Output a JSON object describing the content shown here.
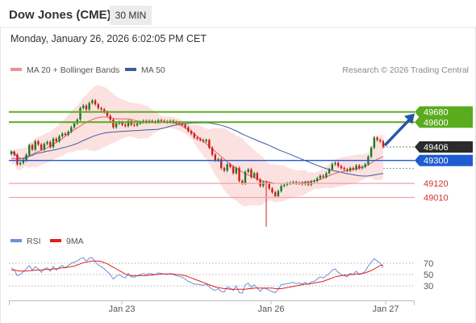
{
  "header": {
    "title": "Dow Jones (CME)",
    "timeframe": "30 MIN",
    "datetime": "Monday, January 26, 2026 6:02:05 PM CET"
  },
  "legend": {
    "ma20": "MA 20 + Bollinger Bands",
    "ma50": "MA 50",
    "copyright": "Research © 2026 Trading Central"
  },
  "rsi_legend": {
    "rsi": "RSI",
    "ma": "9MA"
  },
  "colors": {
    "up": "#1a7a22",
    "down": "#c8201b",
    "ma20": "#e0666a",
    "ma50": "#3d5d9a",
    "band": "#fcdcdc",
    "resistance": "#5aab1e",
    "support": "#f2a3a6",
    "pivot": "#1f5bd1",
    "arrow": "#2457a7",
    "rsi": "#6f8fd8",
    "rsi_ma": "#e02020"
  },
  "chart_data": [
    {
      "type": "candlestick",
      "x_ticks": [
        "Jan 23",
        "Jan 26",
        "Jan 27"
      ],
      "ylim": [
        48760,
        49950
      ],
      "last_price": 49406,
      "levels": [
        {
          "value": 49680,
          "label": "49680",
          "kind": "resistance"
        },
        {
          "value": 49600,
          "label": "49600",
          "kind": "resistance"
        },
        {
          "value": 49300,
          "label": "49300",
          "kind": "pivot"
        },
        {
          "value": 49120,
          "label": "49120",
          "kind": "support"
        },
        {
          "value": 49010,
          "label": "49010",
          "kind": "support"
        }
      ],
      "closes": [
        49370,
        49345,
        49270,
        49280,
        49300,
        49345,
        49420,
        49385,
        49450,
        49425,
        49385,
        49430,
        49445,
        49405,
        49470,
        49450,
        49490,
        49510,
        49500,
        49525,
        49560,
        49590,
        49620,
        49710,
        49730,
        49700,
        49750,
        49770,
        49740,
        49710,
        49700,
        49680,
        49650,
        49620,
        49560,
        49590,
        49600,
        49580,
        49570,
        49610,
        49580,
        49575,
        49590,
        49600,
        49610,
        49600,
        49610,
        49605,
        49600,
        49615,
        49610,
        49605,
        49600,
        49610,
        49600,
        49595,
        49590,
        49580,
        49560,
        49530,
        49510,
        49480,
        49470,
        49460,
        49450,
        49460,
        49400,
        49345,
        49300,
        49310,
        49240,
        49220,
        49270,
        49250,
        49200,
        49240,
        49140,
        49120,
        49210,
        49230,
        49170,
        49200,
        49150,
        49100,
        49130,
        49120,
        49080,
        49050,
        49020,
        49060,
        49100,
        49110,
        49120,
        49125,
        49130,
        49120,
        49125,
        49115,
        49130,
        49110,
        49135,
        49140,
        49160,
        49180,
        49170,
        49200,
        49230,
        49270,
        49280,
        49255,
        49240,
        49230,
        49220,
        49240,
        49230,
        49260,
        49240,
        49250,
        49270,
        49330,
        49400,
        49480,
        49460,
        49450,
        49406
      ],
      "ma20": [
        49315,
        49315,
        49310,
        49310,
        49320,
        49330,
        49340,
        49350,
        49360,
        49370,
        49380,
        49390,
        49400,
        49410,
        49425,
        49440,
        49455,
        49470,
        49490,
        49510,
        49525,
        49540,
        49555,
        49570,
        49585,
        49600,
        49610,
        49620,
        49630,
        49635,
        49640,
        49640,
        49640,
        49635,
        49630,
        49625,
        49625,
        49625,
        49625,
        49625,
        49620,
        49615,
        49610,
        49605,
        49605,
        49600,
        49600,
        49600,
        49600,
        49600,
        49600,
        49600,
        49600,
        49600,
        49595,
        49590,
        49580,
        49570,
        49555,
        49540,
        49525,
        49510,
        49490,
        49470,
        49450,
        49430,
        49410,
        49390,
        49370,
        49350,
        49330,
        49310,
        49290,
        49270,
        49255,
        49240,
        49225,
        49210,
        49195,
        49185,
        49175,
        49165,
        49155,
        49145,
        49140,
        49135,
        49130,
        49125,
        49120,
        49120,
        49120,
        49120,
        49120,
        49120,
        49120,
        49120,
        49120,
        49125,
        49130,
        49130,
        49135,
        49140,
        49145,
        49150,
        49160,
        49170,
        49180,
        49190,
        49200,
        49205,
        49210,
        49215,
        49220,
        49225,
        49230,
        49235,
        49240,
        49245,
        49255,
        49265,
        49280,
        49295,
        49310,
        49320,
        49330
      ]
    },
    {
      "type": "line",
      "name": "RSI",
      "y_ticks": [
        70,
        50,
        30
      ],
      "ylim": [
        10,
        90
      ],
      "rsi": [
        62,
        58,
        48,
        50,
        55,
        60,
        66,
        58,
        64,
        60,
        54,
        60,
        62,
        56,
        64,
        58,
        63,
        66,
        62,
        66,
        70,
        72,
        74,
        78,
        80,
        74,
        79,
        80,
        72,
        67,
        64,
        60,
        55,
        50,
        42,
        47,
        50,
        46,
        44,
        52,
        46,
        45,
        48,
        50,
        52,
        50,
        52,
        51,
        50,
        53,
        52,
        51,
        50,
        52,
        50,
        48,
        47,
        45,
        42,
        38,
        36,
        33,
        33,
        32,
        31,
        33,
        28,
        24,
        22,
        25,
        20,
        19,
        28,
        26,
        22,
        30,
        18,
        17,
        32,
        35,
        27,
        32,
        26,
        20,
        26,
        25,
        22,
        20,
        18,
        24,
        32,
        33,
        34,
        35,
        36,
        34,
        35,
        33,
        36,
        33,
        37,
        38,
        42,
        46,
        44,
        48,
        52,
        58,
        60,
        54,
        50,
        48,
        46,
        52,
        50,
        56,
        50,
        52,
        56,
        65,
        72,
        78,
        74,
        70,
        62
      ],
      "rsi_ma": [
        58,
        58,
        57,
        56,
        56,
        56,
        57,
        57,
        58,
        58,
        58,
        59,
        59,
        59,
        60,
        60,
        61,
        62,
        62,
        63,
        64,
        65,
        67,
        69,
        71,
        72,
        73,
        74,
        74,
        74,
        73,
        71,
        69,
        66,
        63,
        60,
        57,
        54,
        51,
        49,
        48,
        48,
        48,
        48,
        48,
        48,
        49,
        49,
        50,
        50,
        51,
        51,
        51,
        51,
        51,
        50,
        50,
        49,
        48,
        46,
        44,
        42,
        40,
        38,
        36,
        34,
        32,
        30,
        28,
        27,
        26,
        25,
        25,
        24,
        24,
        24,
        24,
        24,
        24,
        25,
        25,
        26,
        26,
        26,
        26,
        26,
        26,
        26,
        25,
        25,
        25,
        26,
        27,
        28,
        29,
        30,
        31,
        32,
        33,
        33,
        34,
        35,
        36,
        37,
        38,
        40,
        42,
        44,
        46,
        47,
        48,
        49,
        49,
        50,
        50,
        51,
        51,
        52,
        53,
        55,
        57,
        60,
        63,
        66,
        67
      ]
    }
  ]
}
